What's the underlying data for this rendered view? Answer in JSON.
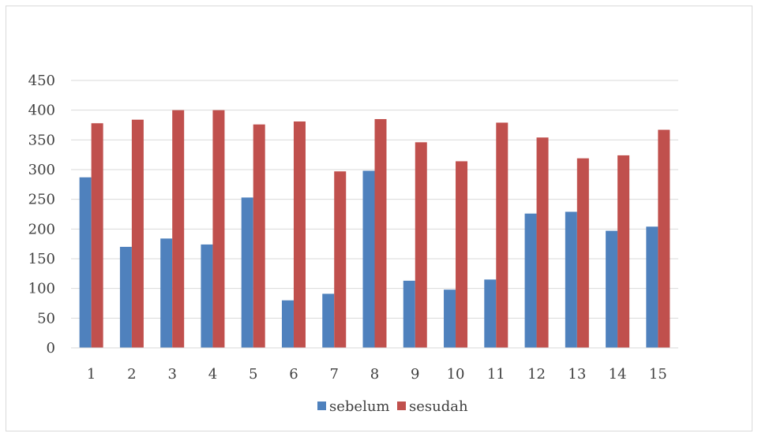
{
  "chart_data": {
    "type": "bar",
    "title": "",
    "xlabel": "",
    "ylabel": "",
    "categories": [
      "1",
      "2",
      "3",
      "4",
      "5",
      "6",
      "7",
      "8",
      "9",
      "10",
      "11",
      "12",
      "13",
      "14",
      "15"
    ],
    "series": [
      {
        "name": "sebelum",
        "color": "#4f81bd",
        "values": [
          287,
          170,
          184,
          174,
          253,
          80,
          91,
          298,
          113,
          98,
          115,
          226,
          229,
          197,
          204
        ]
      },
      {
        "name": "sesudah",
        "color": "#c0504d",
        "values": [
          378,
          384,
          400,
          400,
          376,
          381,
          297,
          385,
          346,
          314,
          379,
          354,
          319,
          324,
          367
        ]
      }
    ],
    "ylim": [
      0,
      450
    ],
    "yticks": [
      0,
      50,
      100,
      150,
      200,
      250,
      300,
      350,
      400,
      450
    ],
    "grid": true,
    "legend_position": "bottom"
  }
}
